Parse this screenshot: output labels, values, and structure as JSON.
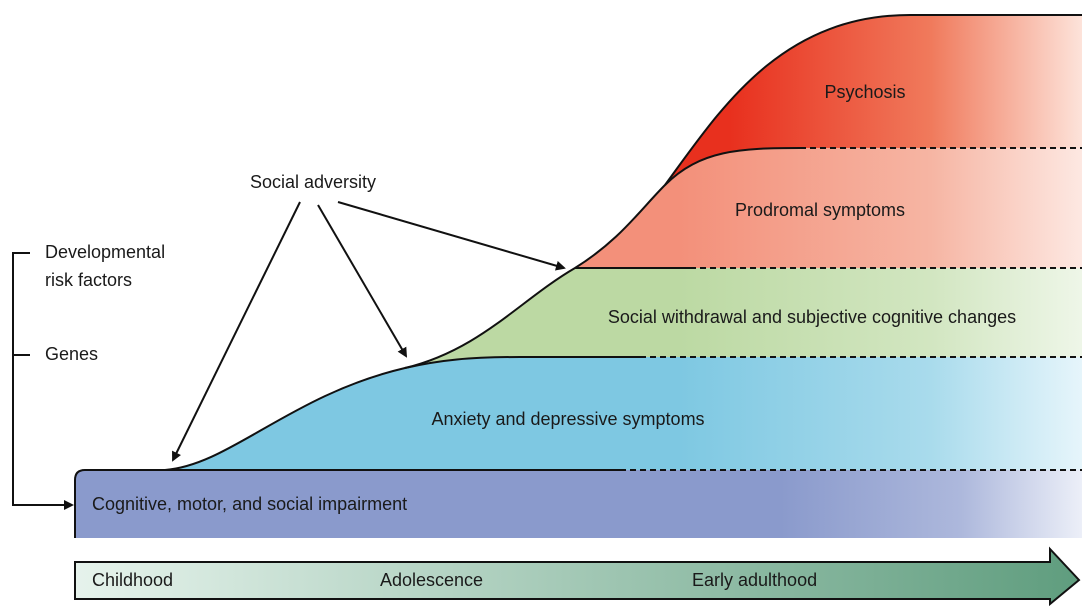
{
  "annotations": {
    "social_adversity": "Social adversity",
    "developmental_risk_factors": [
      "Developmental",
      "risk factors"
    ],
    "genes": "Genes"
  },
  "layers": [
    {
      "label": "Psychosis"
    },
    {
      "label": "Prodromal symptoms"
    },
    {
      "label": "Social withdrawal and subjective cognitive changes"
    },
    {
      "label": "Anxiety and depressive symptoms"
    },
    {
      "label": "Cognitive, motor, and social impairment"
    }
  ],
  "timeline": [
    "Childhood",
    "Adolescence",
    "Early adulthood"
  ]
}
